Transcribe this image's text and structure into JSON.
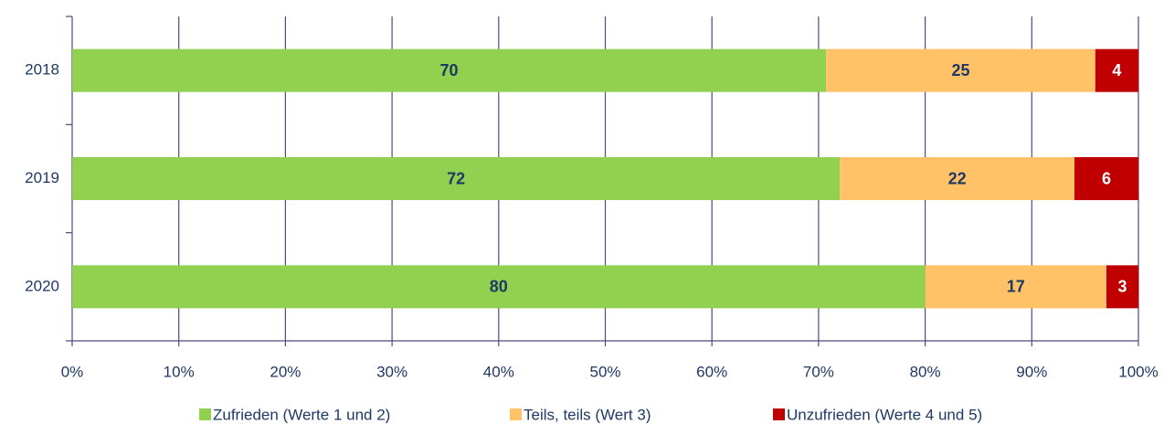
{
  "chart_data": {
    "type": "bar",
    "orientation": "horizontal",
    "stacked": "percent",
    "categories": [
      "2018",
      "2019",
      "2020"
    ],
    "series": [
      {
        "name": "Zufrieden (Werte 1 und 2)",
        "color": "#92d050",
        "label_color": "#1f3864",
        "values": [
          70,
          72,
          80
        ]
      },
      {
        "name": "Teils, teils (Wert 3)",
        "color": "#ffc266",
        "label_color": "#1f3864",
        "values": [
          25,
          22,
          17
        ]
      },
      {
        "name": "Unzufrieden (Werte 4 und 5)",
        "color": "#c00000",
        "label_color": "#ffffff",
        "values": [
          4,
          6,
          3
        ]
      }
    ],
    "xlim": [
      0,
      100
    ],
    "xticks": [
      {
        "value": 0,
        "label": "0%"
      },
      {
        "value": 10,
        "label": "10%"
      },
      {
        "value": 20,
        "label": "20%"
      },
      {
        "value": 30,
        "label": "30%"
      },
      {
        "value": 40,
        "label": "40%"
      },
      {
        "value": 50,
        "label": "50%"
      },
      {
        "value": 60,
        "label": "60%"
      },
      {
        "value": 70,
        "label": "70%"
      },
      {
        "value": 80,
        "label": "80%"
      },
      {
        "value": 90,
        "label": "90%"
      },
      {
        "value": 100,
        "label": "100%"
      }
    ],
    "grid": true,
    "legend": "bottom"
  }
}
